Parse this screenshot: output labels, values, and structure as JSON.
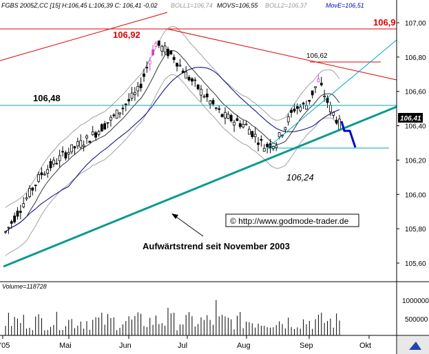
{
  "header": {
    "symbol": "FGBS 2005Z,CC [15]",
    "quote": "H:106,45 L:106,39 C: 106,41 -0,02",
    "boll1": "BOLL1=106,74",
    "movs": "MOVS=106,55",
    "boll2": "BOLL2=106,37",
    "move": "MovE=106,51"
  },
  "chart_data": {
    "type": "candlestick",
    "y_axis": {
      "ticks": [
        "107,00",
        "106,80",
        "106,60",
        "106,40",
        "106,20",
        "106,00",
        "105,80",
        "105,60"
      ],
      "ylim": [
        105.55,
        107.05
      ]
    },
    "x_axis": {
      "ticks": [
        "'05",
        "Mai",
        "Jun",
        "Jul",
        "Aug",
        "Sep",
        "Okt"
      ]
    },
    "last_price_label": "106,41",
    "price_labels": {
      "high_left": "106,92",
      "high_right": "106,9",
      "support": "106,48",
      "recent_high": "106,62",
      "recent_low": "106,24"
    },
    "annotations": {
      "trend": "Aufwärtstrend seit November 2003",
      "copyright": "© http://www.godmode-trader.de"
    },
    "volume": {
      "label": "Volume=118728",
      "ticks": [
        "1000000",
        "500000"
      ]
    },
    "colors": {
      "resistance": "#dd0000",
      "trendline": "#0a9a8e",
      "support": "#00a8b8",
      "projection": "#0000cc",
      "bands": "#a0a0a0",
      "ma_blue": "#000080",
      "highlight": "#cc44cc"
    }
  }
}
